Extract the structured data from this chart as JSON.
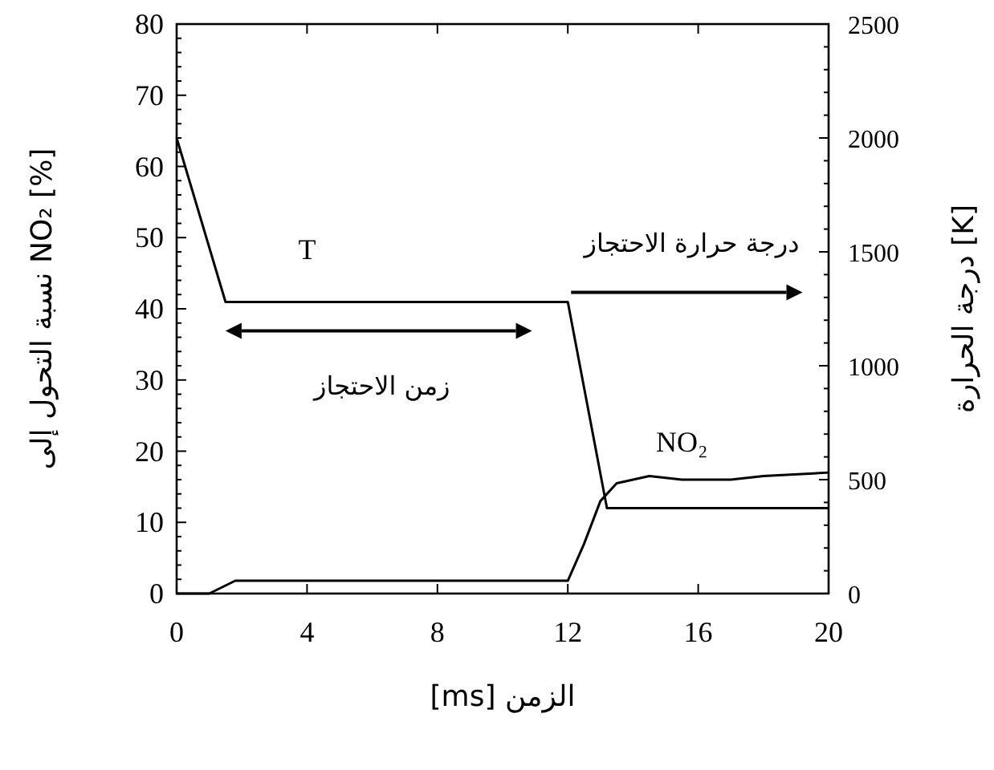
{
  "chart_data": {
    "type": "line",
    "xlabel": "[ms] الزمن",
    "ylabel": "نسبة التحول إلى NO₂ [%]",
    "y2label": "درجة الحرارة [K]",
    "annotations": [
      "درجة حرارة الاحتجاز",
      "زمن الاحتجاز"
    ],
    "xlim": [
      0,
      20
    ],
    "xticks": [
      0,
      4,
      8,
      12,
      16,
      20
    ],
    "ylim": [
      0,
      80
    ],
    "yticks": [
      0,
      10,
      20,
      30,
      40,
      50,
      60,
      70,
      80
    ],
    "y2lim": [
      0,
      2500
    ],
    "y2ticks": [
      0,
      500,
      1000,
      1500,
      2000,
      2500
    ],
    "series": [
      {
        "name": "T",
        "color": "#000000",
        "axis": "y2",
        "x": [
          0,
          1.5,
          12,
          13.2,
          20
        ],
        "values": [
          2000,
          1280,
          1280,
          375,
          375
        ]
      },
      {
        "name": "NO₂",
        "color": "#000000",
        "x": [
          0,
          1,
          1.8,
          12,
          12.5,
          13,
          13.5,
          14.5,
          15.5,
          17,
          18,
          20
        ],
        "values": [
          0,
          0,
          1.8,
          1.8,
          7,
          13,
          15.5,
          16.5,
          16,
          16,
          16.5,
          17
        ]
      }
    ]
  }
}
